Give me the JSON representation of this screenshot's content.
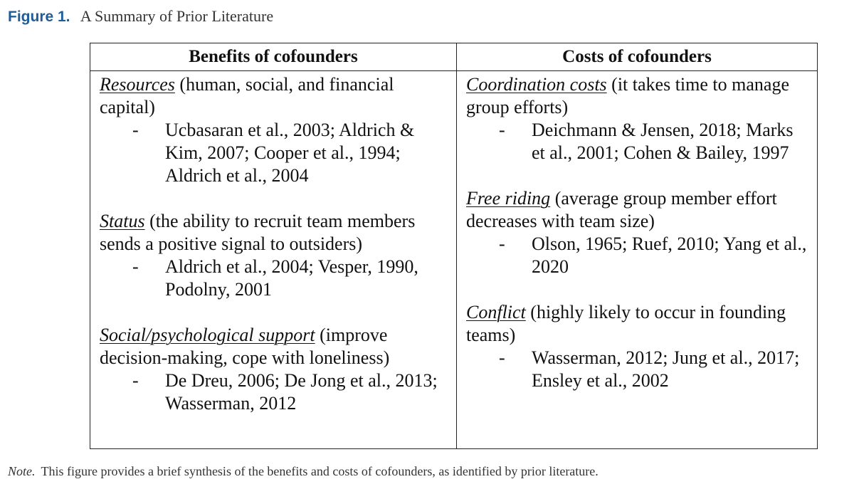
{
  "figure": {
    "label": "Figure 1.",
    "title": "A Summary of Prior Literature"
  },
  "table": {
    "headers": [
      "Benefits of cofounders",
      "Costs of cofounders"
    ],
    "benefits": [
      {
        "term": "Resources",
        "description": " (human, social, and financial capital)",
        "refs_dash": "-",
        "refs": "Ucbasaran et al., 2003; Aldrich & Kim, 2007; Cooper et al., 1994; Aldrich et al., 2004"
      },
      {
        "term": "Status",
        "description": " (the ability to recruit team members sends a positive signal to outsiders)",
        "refs_dash": "-",
        "refs": "Aldrich et al., 2004; Vesper, 1990, Podolny, 2001"
      },
      {
        "term": "Social/psychological support",
        "description": " (improve decision-making, cope with loneliness)",
        "refs_dash": "-",
        "refs": "De Dreu, 2006; De Jong et al., 2013; Wasserman, 2012"
      }
    ],
    "costs": [
      {
        "term": "Coordination costs",
        "description": " (it takes time to manage group efforts)",
        "refs_dash": "-",
        "refs": "Deichmann & Jensen, 2018; Marks et al., 2001; Cohen & Bailey, 1997"
      },
      {
        "term": "Free riding",
        "description": " (average group member effort decreases with team size)",
        "refs_dash": "-",
        "refs": "Olson, 1965; Ruef, 2010; Yang et al., 2020"
      },
      {
        "term": "Conflict",
        "description": " (highly likely to occur in founding teams)",
        "refs_dash": "-",
        "refs": "Wasserman, 2012; Jung et al., 2017; Ensley et al., 2002"
      }
    ]
  },
  "note": {
    "label": "Note.",
    "text": "This figure provides a brief synthesis of the benefits and costs of cofounders, as identified by prior literature."
  }
}
